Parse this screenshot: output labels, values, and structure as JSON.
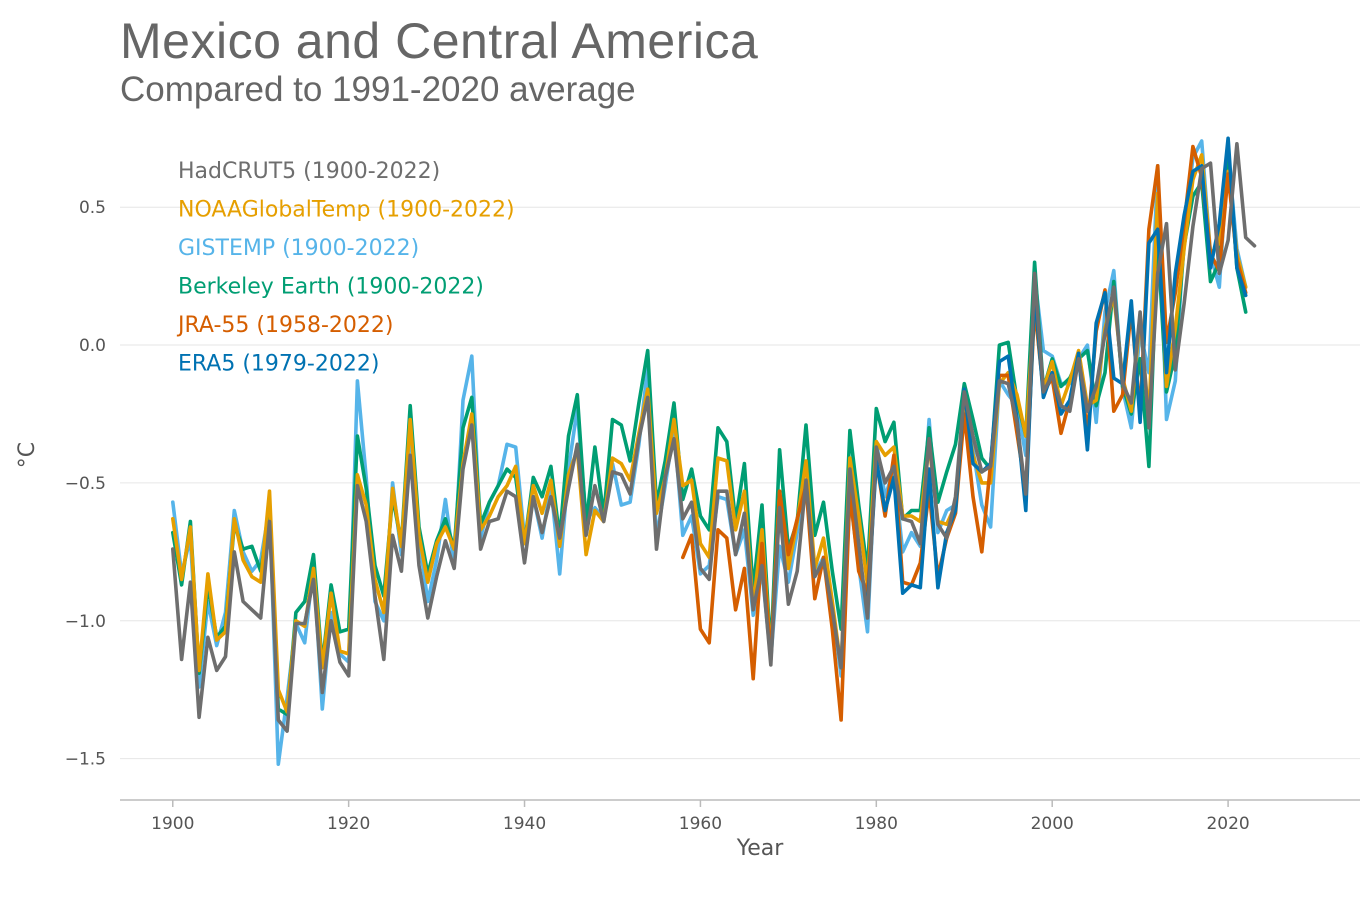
{
  "header": {
    "title": "Mexico and Central America",
    "subtitle": "Compared to 1991-2020 average"
  },
  "chart_data": {
    "type": "line",
    "title": "Mexico and Central America",
    "subtitle": "Compared to 1991-2020 average",
    "xlabel": "Year",
    "ylabel": "°C",
    "xlim": [
      1894,
      2035
    ],
    "ylim": [
      -1.65,
      0.78
    ],
    "xticks": [
      1900,
      1920,
      1940,
      1960,
      1980,
      2000,
      2020
    ],
    "xtick_labels": [
      "1900",
      "1920",
      "1940",
      "1960",
      "1980",
      "2000",
      "2020"
    ],
    "yticks": [
      0.5,
      0.0,
      -0.5,
      -1.0,
      -1.5
    ],
    "ytick_labels": [
      "0.5",
      "0.0",
      "−0.5",
      "−1.0",
      "−1.5"
    ],
    "grid": "horizontal",
    "legend_position": "top-left",
    "series": [
      {
        "name": "GISTEMP (1900-2022)",
        "color": "#56B4E9",
        "x_start": 1900,
        "values": [
          -0.57,
          -0.83,
          -0.7,
          -1.24,
          -0.93,
          -1.09,
          -0.97,
          -0.6,
          -0.75,
          -0.82,
          -0.78,
          -0.59,
          -1.52,
          -1.28,
          -1.01,
          -1.08,
          -0.8,
          -1.32,
          -0.97,
          -1.12,
          -1.15,
          -0.13,
          -0.48,
          -0.93,
          -1.0,
          -0.5,
          -0.76,
          -0.3,
          -0.7,
          -0.93,
          -0.78,
          -0.56,
          -0.8,
          -0.2,
          -0.04,
          -0.7,
          -0.57,
          -0.51,
          -0.36,
          -0.37,
          -0.7,
          -0.55,
          -0.7,
          -0.51,
          -0.83,
          -0.45,
          -0.23,
          -0.64,
          -0.59,
          -0.63,
          -0.43,
          -0.58,
          -0.57,
          -0.36,
          -0.08,
          -0.7,
          -0.51,
          -0.3,
          -0.69,
          -0.62,
          -0.83,
          -0.8,
          -0.55,
          -0.56,
          -0.76,
          -0.67,
          -0.98,
          -0.82,
          -1.14,
          -0.73,
          -0.86,
          -0.68,
          -0.49,
          -0.83,
          -0.77,
          -0.95,
          -1.2,
          -0.55,
          -0.8,
          -1.04,
          -0.35,
          -0.55,
          -0.45,
          -0.75,
          -0.68,
          -0.73,
          -0.27,
          -0.68,
          -0.6,
          -0.58,
          -0.23,
          -0.38,
          -0.58,
          -0.66,
          -0.13,
          -0.18,
          -0.22,
          -0.4,
          0.25,
          -0.02,
          -0.04,
          -0.14,
          -0.14,
          -0.05,
          0.0,
          -0.28,
          0.12,
          0.27,
          -0.16,
          -0.3,
          0.05,
          -0.1,
          0.65,
          -0.27,
          -0.13,
          0.4,
          0.68,
          0.74,
          0.33,
          0.21,
          0.7,
          0.35,
          0.21
        ]
      },
      {
        "name": "Berkeley Earth (1900-2022)",
        "color": "#009E73",
        "x_start": 1900,
        "values": [
          -0.68,
          -0.87,
          -0.64,
          -1.19,
          -0.87,
          -1.06,
          -1.02,
          -0.65,
          -0.74,
          -0.73,
          -0.82,
          -0.61,
          -1.32,
          -1.34,
          -0.97,
          -0.93,
          -0.76,
          -1.16,
          -0.87,
          -1.04,
          -1.03,
          -0.33,
          -0.52,
          -0.8,
          -0.91,
          -0.55,
          -0.72,
          -0.22,
          -0.66,
          -0.83,
          -0.71,
          -0.63,
          -0.74,
          -0.3,
          -0.19,
          -0.65,
          -0.57,
          -0.51,
          -0.45,
          -0.48,
          -0.72,
          -0.48,
          -0.55,
          -0.44,
          -0.7,
          -0.33,
          -0.18,
          -0.65,
          -0.37,
          -0.62,
          -0.27,
          -0.29,
          -0.42,
          -0.21,
          -0.02,
          -0.58,
          -0.42,
          -0.21,
          -0.56,
          -0.45,
          -0.62,
          -0.67,
          -0.3,
          -0.35,
          -0.64,
          -0.43,
          -0.89,
          -0.58,
          -1.12,
          -0.38,
          -0.74,
          -0.64,
          -0.29,
          -0.69,
          -0.57,
          -0.82,
          -1.03,
          -0.31,
          -0.58,
          -0.82,
          -0.23,
          -0.35,
          -0.28,
          -0.63,
          -0.6,
          -0.6,
          -0.3,
          -0.57,
          -0.46,
          -0.36,
          -0.14,
          -0.27,
          -0.41,
          -0.45,
          0.0,
          0.01,
          -0.2,
          -0.33,
          0.3,
          -0.16,
          -0.05,
          -0.15,
          -0.12,
          -0.05,
          -0.02,
          -0.22,
          -0.1,
          0.23,
          -0.15,
          -0.25,
          -0.05,
          -0.44,
          0.38,
          -0.17,
          -0.03,
          0.36,
          0.54,
          0.59,
          0.23,
          0.3,
          0.72,
          0.28,
          0.12
        ]
      },
      {
        "name": "NOAAGlobalTemp (1900-2022)",
        "color": "#E69F00",
        "x_start": 1900,
        "values": [
          -0.63,
          -0.85,
          -0.66,
          -1.18,
          -0.83,
          -1.07,
          -1.04,
          -0.63,
          -0.78,
          -0.84,
          -0.86,
          -0.53,
          -1.25,
          -1.33,
          -1.0,
          -1.02,
          -0.81,
          -1.17,
          -0.9,
          -1.11,
          -1.12,
          -0.47,
          -0.58,
          -0.85,
          -0.97,
          -0.52,
          -0.73,
          -0.27,
          -0.69,
          -0.86,
          -0.72,
          -0.66,
          -0.74,
          -0.43,
          -0.25,
          -0.67,
          -0.62,
          -0.55,
          -0.51,
          -0.44,
          -0.72,
          -0.51,
          -0.61,
          -0.49,
          -0.73,
          -0.47,
          -0.38,
          -0.76,
          -0.6,
          -0.64,
          -0.41,
          -0.43,
          -0.49,
          -0.32,
          -0.16,
          -0.61,
          -0.48,
          -0.27,
          -0.51,
          -0.49,
          -0.72,
          -0.77,
          -0.41,
          -0.42,
          -0.67,
          -0.53,
          -0.95,
          -0.67,
          -1.13,
          -0.53,
          -0.81,
          -0.64,
          -0.42,
          -0.81,
          -0.7,
          -0.93,
          -1.17,
          -0.41,
          -0.62,
          -0.87,
          -0.35,
          -0.4,
          -0.37,
          -0.62,
          -0.62,
          -0.64,
          -0.36,
          -0.64,
          -0.65,
          -0.58,
          -0.22,
          -0.4,
          -0.5,
          -0.5,
          -0.14,
          -0.1,
          -0.18,
          -0.33,
          0.15,
          -0.16,
          -0.06,
          -0.22,
          -0.13,
          -0.02,
          -0.22,
          -0.2,
          0.06,
          0.18,
          -0.12,
          -0.24,
          0.1,
          -0.27,
          0.55,
          -0.15,
          0.06,
          0.35,
          0.6,
          0.69,
          0.33,
          0.37,
          0.63,
          0.33,
          0.21
        ]
      },
      {
        "name": "JRA-55 (1958-2022)",
        "color": "#D55E00",
        "x_start": 1958,
        "values": [
          -0.77,
          -0.69,
          -1.03,
          -1.08,
          -0.67,
          -0.7,
          -0.96,
          -0.81,
          -1.21,
          -0.72,
          -1.14,
          -0.53,
          -0.76,
          -0.63,
          -0.51,
          -0.92,
          -0.77,
          -1.03,
          -1.36,
          -0.53,
          -0.82,
          -0.9,
          -0.42,
          -0.62,
          -0.4,
          -0.86,
          -0.87,
          -0.79,
          -0.53,
          -0.84,
          -0.7,
          -0.61,
          -0.25,
          -0.55,
          -0.75,
          -0.43,
          -0.11,
          -0.11,
          -0.32,
          -0.53,
          0.14,
          -0.17,
          -0.12,
          -0.32,
          -0.2,
          -0.05,
          -0.32,
          0.05,
          0.2,
          -0.24,
          -0.18,
          0.13,
          -0.25,
          0.42,
          0.65,
          0.01,
          0.19,
          0.44,
          0.72,
          0.61,
          0.33,
          0.27,
          0.62,
          0.31,
          0.19
        ]
      },
      {
        "name": "ERA5 (1979-2022)",
        "color": "#0072B2",
        "x_start": 1979,
        "values": [
          -0.95,
          -0.42,
          -0.6,
          -0.48,
          -0.9,
          -0.87,
          -0.88,
          -0.45,
          -0.88,
          -0.68,
          -0.6,
          -0.16,
          -0.43,
          -0.46,
          -0.43,
          -0.06,
          -0.04,
          -0.27,
          -0.6,
          0.2,
          -0.19,
          -0.1,
          -0.25,
          -0.2,
          -0.03,
          -0.38,
          0.08,
          0.19,
          -0.12,
          -0.14,
          0.16,
          -0.28,
          0.37,
          0.42,
          -0.1,
          0.26,
          0.47,
          0.63,
          0.65,
          0.28,
          0.44,
          0.75,
          0.28,
          0.18
        ]
      },
      {
        "name": "HadCRUT5 (1900-2022)",
        "color": "#6E6E6E",
        "x_start": 1900,
        "values": [
          -0.74,
          -1.14,
          -0.86,
          -1.35,
          -1.06,
          -1.18,
          -1.13,
          -0.75,
          -0.93,
          -0.96,
          -0.99,
          -0.64,
          -1.36,
          -1.4,
          -1.01,
          -1.01,
          -0.85,
          -1.26,
          -1.0,
          -1.15,
          -1.2,
          -0.51,
          -0.64,
          -0.91,
          -1.14,
          -0.69,
          -0.82,
          -0.4,
          -0.8,
          -0.99,
          -0.84,
          -0.71,
          -0.81,
          -0.45,
          -0.29,
          -0.74,
          -0.64,
          -0.63,
          -0.53,
          -0.55,
          -0.79,
          -0.55,
          -0.68,
          -0.55,
          -0.7,
          -0.52,
          -0.36,
          -0.69,
          -0.51,
          -0.64,
          -0.46,
          -0.47,
          -0.54,
          -0.34,
          -0.19,
          -0.74,
          -0.48,
          -0.34,
          -0.63,
          -0.57,
          -0.81,
          -0.85,
          -0.53,
          -0.53,
          -0.76,
          -0.61,
          -0.96,
          -0.8,
          -1.16,
          -0.59,
          -0.94,
          -0.82,
          -0.49,
          -0.84,
          -0.78,
          -0.96,
          -1.17,
          -0.45,
          -0.72,
          -0.99,
          -0.37,
          -0.5,
          -0.44,
          -0.63,
          -0.64,
          -0.72,
          -0.34,
          -0.65,
          -0.7,
          -0.55,
          -0.17,
          -0.33,
          -0.46,
          -0.44,
          -0.13,
          -0.14,
          -0.28,
          -0.54,
          0.26,
          -0.17,
          -0.11,
          -0.22,
          -0.24,
          -0.05,
          -0.24,
          -0.15,
          0.04,
          0.21,
          -0.14,
          -0.21,
          0.12,
          -0.3,
          0.26,
          0.44,
          -0.09,
          0.15,
          0.43,
          0.64,
          0.66,
          0.26,
          0.38,
          0.73,
          0.39,
          0.36
        ]
      }
    ],
    "legend_order": [
      "HadCRUT5 (1900-2022)",
      "NOAAGlobalTemp (1900-2022)",
      "GISTEMP (1900-2022)",
      "Berkeley Earth (1900-2022)",
      "JRA-55 (1958-2022)",
      "ERA5 (1979-2022)"
    ]
  }
}
